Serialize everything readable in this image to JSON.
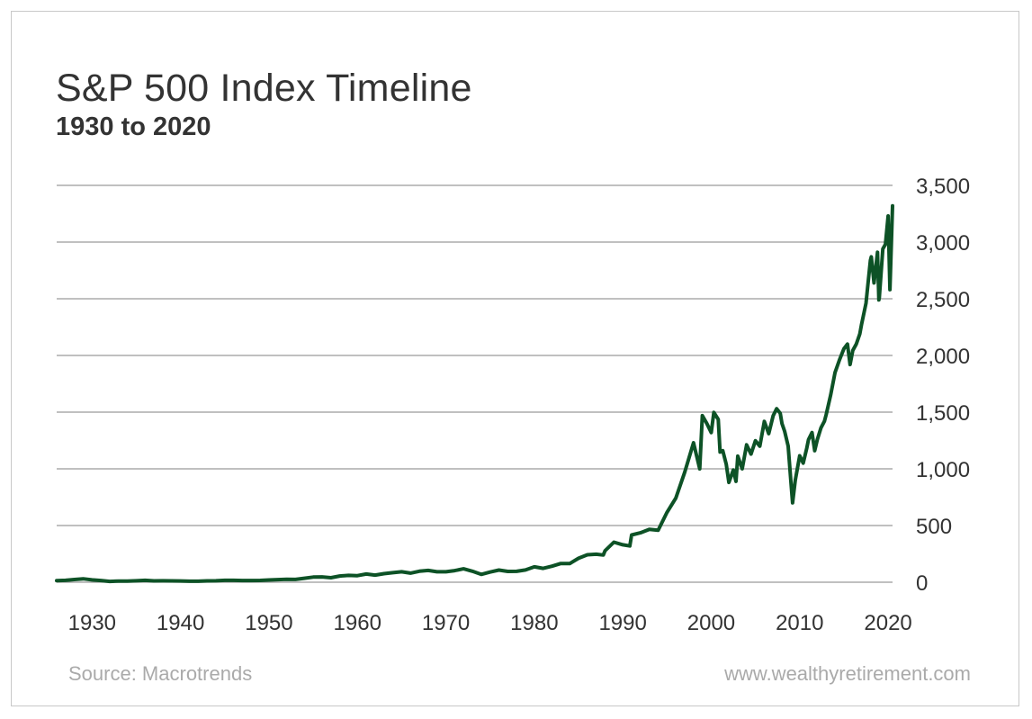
{
  "header": {
    "title": "S&P 500 Index Timeline",
    "subtitle": "1930 to 2020"
  },
  "footer": {
    "source": "Source: Macrotrends",
    "website": "www.wealthyretirement.com"
  },
  "colors": {
    "line": "#0d5226",
    "grid": "#9a9a9a",
    "text": "#333333",
    "footer_text": "#aaaaaa"
  },
  "chart_data": {
    "type": "line",
    "title": "S&P 500 Index Timeline",
    "subtitle": "1930 to 2020",
    "xlabel": "",
    "ylabel": "",
    "xlim": [
      1926,
      2020.5
    ],
    "ylim": [
      0,
      3500
    ],
    "x_ticks": [
      1930,
      1940,
      1950,
      1960,
      1970,
      1980,
      1990,
      2000,
      2010,
      2020
    ],
    "y_ticks": [
      0,
      500,
      1000,
      1500,
      2000,
      2500,
      3000,
      3500
    ],
    "y_tick_labels": [
      "0",
      "500",
      "1,000",
      "1,500",
      "2,000",
      "2,500",
      "3,000",
      "3,500"
    ],
    "y_axis_position": "right",
    "grid": "horizontal",
    "legend": "none",
    "series": [
      {
        "x": [
          1926,
          1927,
          1928,
          1929,
          1930,
          1931,
          1932,
          1933,
          1934,
          1935,
          1936,
          1937,
          1938,
          1939,
          1940,
          1941,
          1942,
          1943,
          1944,
          1945,
          1946,
          1947,
          1948,
          1949,
          1950,
          1951,
          1952,
          1953,
          1954,
          1955,
          1956,
          1957,
          1958,
          1959,
          1960,
          1961,
          1962,
          1963,
          1964,
          1965,
          1966,
          1967,
          1968,
          1969,
          1970,
          1971,
          1972,
          1973,
          1974,
          1975,
          1976,
          1977,
          1978,
          1979,
          1980,
          1981,
          1982,
          1983,
          1984,
          1985,
          1986,
          1987,
          1987.8,
          1988,
          1989,
          1990,
          1990.8,
          1991,
          1992,
          1993,
          1994,
          1995,
          1996,
          1997,
          1998,
          1998.7,
          1999,
          1999.5,
          2000,
          2000.3,
          2000.8,
          2001,
          2001.3,
          2001.7,
          2002,
          2002.5,
          2002.8,
          2003,
          2003.5,
          2004,
          2004.5,
          2005,
          2005.5,
          2006,
          2006.5,
          2007,
          2007.4,
          2007.8,
          2008,
          2008.3,
          2008.7,
          2009,
          2009.2,
          2009.5,
          2010,
          2010.4,
          2010.8,
          2011,
          2011.4,
          2011.7,
          2012,
          2012.4,
          2012.8,
          2013,
          2013.5,
          2014,
          2014.5,
          2015,
          2015.4,
          2015.7,
          2016,
          2016.4,
          2016.8,
          2017,
          2017.5,
          2018,
          2018.1,
          2018.4,
          2018.8,
          2018.95,
          2019,
          2019.4,
          2019.7,
          2020,
          2020.2,
          2020.5
        ],
        "values": [
          14,
          17,
          24,
          30,
          21,
          15,
          7,
          10,
          10,
          13,
          17,
          12,
          13,
          12,
          11,
          9,
          9,
          12,
          13,
          17,
          17,
          15,
          15,
          16,
          20,
          23,
          26,
          25,
          35,
          45,
          47,
          40,
          55,
          60,
          58,
          72,
          63,
          75,
          84,
          92,
          80,
          97,
          104,
          92,
          92,
          102,
          118,
          97,
          69,
          90,
          107,
          95,
          96,
          108,
          136,
          122,
          141,
          165,
          164,
          211,
          242,
          247,
          240,
          278,
          353,
          330,
          320,
          417,
          436,
          466,
          459,
          616,
          741,
          970,
          1229,
          1000,
          1469,
          1400,
          1320,
          1498,
          1436,
          1148,
          1160,
          1040,
          880,
          990,
          890,
          1112,
          1000,
          1212,
          1130,
          1248,
          1200,
          1418,
          1310,
          1468,
          1530,
          1490,
          1400,
          1330,
          1200,
          900,
          700,
          900,
          1115,
          1050,
          1180,
          1258,
          1320,
          1160,
          1258,
          1360,
          1420,
          1480,
          1650,
          1850,
          1960,
          2059,
          2100,
          1920,
          2044,
          2100,
          2190,
          2275,
          2460,
          2840,
          2870,
          2640,
          2910,
          2490,
          2510,
          2940,
          2980,
          3230,
          2580,
          3320
        ]
      }
    ]
  }
}
